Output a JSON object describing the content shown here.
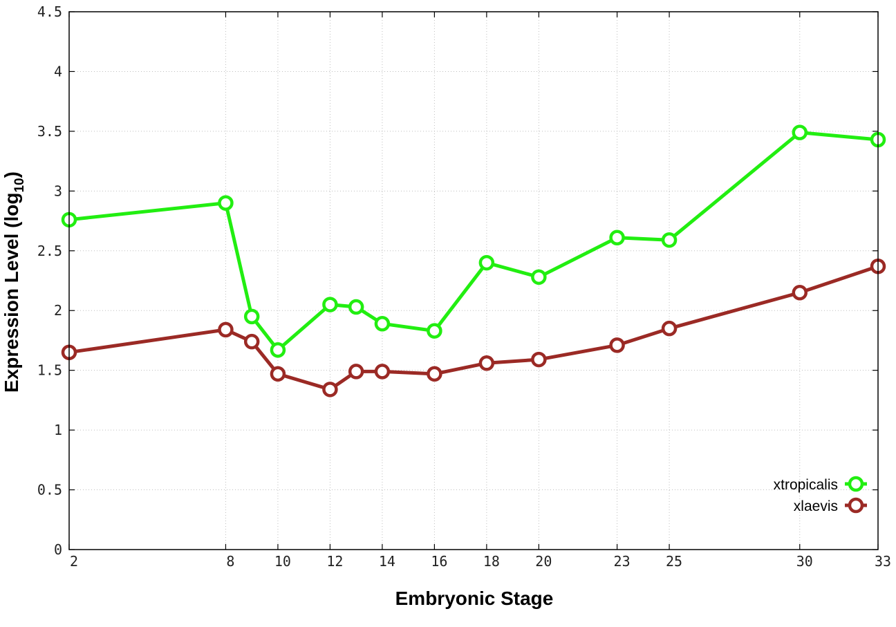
{
  "chart_data": {
    "type": "line",
    "title": "",
    "xlabel": "Embryonic Stage",
    "ylabel": "Expression Level (log",
    "ylabel_sub": "10",
    "ylabel_close": ")",
    "xlim": [
      2,
      33
    ],
    "ylim": [
      0,
      4.5
    ],
    "x_ticks": [
      2,
      8,
      10,
      12,
      14,
      16,
      18,
      20,
      23,
      25,
      30,
      33
    ],
    "x_tick_labels": [
      "2",
      "8",
      "10",
      "12",
      "14",
      "16",
      "18",
      "20",
      "23",
      "25",
      "30",
      "33"
    ],
    "y_ticks": [
      0,
      0.5,
      1,
      1.5,
      2,
      2.5,
      3,
      3.5,
      4,
      4.5
    ],
    "y_tick_labels": [
      "0",
      "0.5",
      "1",
      "1.5",
      "2",
      "2.5",
      "3",
      "3.5",
      "4",
      "4.5"
    ],
    "grid": true,
    "legend_position": "bottom-right",
    "x": [
      2,
      8,
      9,
      10,
      12,
      13,
      14,
      16,
      18,
      20,
      23,
      25,
      30,
      33
    ],
    "series": [
      {
        "name": "xtropicalis",
        "color": "#22ee11",
        "marker": "open-circle",
        "values": [
          2.76,
          2.9,
          1.95,
          1.67,
          2.05,
          2.03,
          1.89,
          1.83,
          2.4,
          2.28,
          2.61,
          2.59,
          3.49,
          3.43
        ]
      },
      {
        "name": "xlaevis",
        "color": "#9b2a25",
        "marker": "open-circle",
        "values": [
          1.65,
          1.84,
          1.74,
          1.47,
          1.34,
          1.49,
          1.49,
          1.47,
          1.56,
          1.59,
          1.71,
          1.85,
          2.15,
          2.37
        ]
      }
    ]
  }
}
